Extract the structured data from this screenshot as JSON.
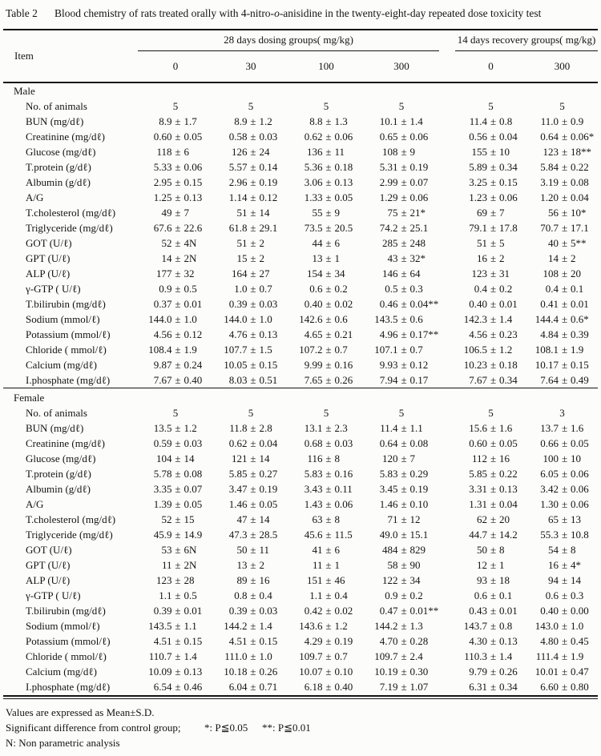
{
  "title": {
    "label": "Table 2",
    "text_before_italic": "Blood chemistry of rats treated orally with 4-nitro-",
    "italic": "o",
    "text_after_italic": "-anisidine in the twenty-eight-day repeated dose toxicity test"
  },
  "header": {
    "item_label": "Item",
    "groups": [
      {
        "label": "28 days dosing groups( mg/kg)",
        "doses": [
          "0",
          "30",
          "100",
          "300"
        ]
      },
      {
        "label": "14 days recovery groups( mg/kg)",
        "doses": [
          "0",
          "300"
        ]
      }
    ]
  },
  "sections": [
    {
      "label": "Male",
      "rows": [
        {
          "item": "No. of animals",
          "values": [
            "5",
            "5",
            "5",
            "5",
            "5",
            "5"
          ]
        },
        {
          "item": "BUN (mg/dℓ)",
          "values": [
            "8.9 ± 1.7",
            "8.9 ± 1.2",
            "8.8 ± 1.3",
            "10.1 ± 1.4",
            "11.4 ± 0.8",
            "11.0 ± 0.9"
          ]
        },
        {
          "item": "Creatinine (mg/dℓ)",
          "values": [
            "0.60 ± 0.05",
            "0.58 ± 0.03",
            "0.62 ± 0.06",
            "0.65 ± 0.06",
            "0.56 ± 0.04",
            "0.64 ± 0.06*"
          ]
        },
        {
          "item": "Glucose (mg/dℓ)",
          "values": [
            "118 ± 6",
            "126 ± 24",
            "136 ± 11",
            "108 ± 9",
            "155 ± 10",
            "123 ± 18**"
          ]
        },
        {
          "item": "T.protein (g/dℓ)",
          "values": [
            "5.33 ± 0.06",
            "5.57 ± 0.14",
            "5.36 ± 0.18",
            "5.31 ± 0.19",
            "5.89 ± 0.34",
            "5.84 ± 0.22"
          ]
        },
        {
          "item": "Albumin (g/dℓ)",
          "values": [
            "2.95 ± 0.15",
            "2.96 ± 0.19",
            "3.06 ± 0.13",
            "2.99 ± 0.07",
            "3.25 ± 0.15",
            "3.19 ± 0.08"
          ]
        },
        {
          "item": "A/G",
          "values": [
            "1.25 ± 0.13",
            "1.14 ± 0.12",
            "1.33 ± 0.05",
            "1.29 ± 0.06",
            "1.23 ± 0.06",
            "1.20 ± 0.04"
          ]
        },
        {
          "item": "T.cholesterol (mg/dℓ)",
          "values": [
            "49 ± 7",
            "51 ± 14",
            "55 ± 9",
            "75 ± 21*",
            "69 ± 7",
            "56 ± 10*"
          ]
        },
        {
          "item": "Triglyceride (mg/dℓ)",
          "values": [
            "67.6 ± 22.6",
            "61.8 ± 29.1",
            "73.5 ± 20.5",
            "74.2 ± 25.1",
            "79.1 ± 17.8",
            "70.7 ± 17.1"
          ]
        },
        {
          "item": "GOT (U/ℓ)",
          "values": [
            "52 ± 4N",
            "51 ± 2",
            "44 ± 6",
            "285 ± 248",
            "51 ± 5",
            "40 ± 5**"
          ]
        },
        {
          "item": "GPT (U/ℓ)",
          "values": [
            "14 ± 2N",
            "15 ± 2",
            "13 ± 1",
            "43 ± 32*",
            "16 ± 2",
            "14 ± 2"
          ]
        },
        {
          "item": "ALP (U/ℓ)",
          "values": [
            "177 ± 32",
            "164 ± 27",
            "154 ± 34",
            "146 ± 64",
            "123 ± 31",
            "108 ± 20"
          ]
        },
        {
          "item": "γ-GTP ( U/ℓ)",
          "values": [
            "0.9 ± 0.5",
            "1.0 ± 0.7",
            "0.6 ± 0.2",
            "0.5 ± 0.3",
            "0.4 ± 0.2",
            "0.4 ± 0.1"
          ]
        },
        {
          "item": "T.bilirubin (mg/dℓ)",
          "values": [
            "0.37 ± 0.01",
            "0.39 ± 0.03",
            "0.40 ± 0.02",
            "0.46 ± 0.04**",
            "0.40 ± 0.01",
            "0.41 ± 0.01"
          ]
        },
        {
          "item": "Sodium (mmol/ℓ)",
          "values": [
            "144.0 ± 1.0",
            "144.0 ± 1.0",
            "142.6 ± 0.6",
            "143.5 ± 0.6",
            "142.3 ± 1.4",
            "144.4 ± 0.6*"
          ]
        },
        {
          "item": "Potassium (mmol/ℓ)",
          "values": [
            "4.56 ± 0.12",
            "4.76 ± 0.13",
            "4.65 ± 0.21",
            "4.96 ± 0.17**",
            "4.56 ± 0.23",
            "4.84 ± 0.39"
          ]
        },
        {
          "item": "Chloride ( mmol/ℓ)",
          "values": [
            "108.4 ± 1.9",
            "107.7 ± 1.5",
            "107.2 ± 0.7",
            "107.1 ± 0.7",
            "106.5 ± 1.2",
            "108.1 ± 1.9"
          ]
        },
        {
          "item": "Calcium (mg/dℓ)",
          "values": [
            "9.87 ± 0.24",
            "10.05 ± 0.15",
            "9.99 ± 0.16",
            "9.93 ± 0.12",
            "10.23 ± 0.18",
            "10.17 ± 0.15"
          ]
        },
        {
          "item": "I.phosphate (mg/dℓ)",
          "values": [
            "7.67 ± 0.40",
            "8.03 ± 0.51",
            "7.65 ± 0.26",
            "7.94 ± 0.17",
            "7.67 ± 0.34",
            "7.64 ± 0.49"
          ]
        }
      ]
    },
    {
      "label": "Female",
      "rows": [
        {
          "item": "No. of animals",
          "values": [
            "5",
            "5",
            "5",
            "5",
            "5",
            "3"
          ]
        },
        {
          "item": "BUN (mg/dℓ)",
          "values": [
            "13.5 ± 1.2",
            "11.8 ± 2.8",
            "13.1 ± 2.3",
            "11.4 ± 1.1",
            "15.6 ± 1.6",
            "13.7 ± 1.6"
          ]
        },
        {
          "item": "Creatinine (mg/dℓ)",
          "values": [
            "0.59 ± 0.03",
            "0.62 ± 0.04",
            "0.68 ± 0.03",
            "0.64 ± 0.08",
            "0.60 ± 0.05",
            "0.66 ± 0.05"
          ]
        },
        {
          "item": "Glucose (mg/dℓ)",
          "values": [
            "104 ± 14",
            "121 ± 14",
            "116 ± 8",
            "120 ± 7",
            "112 ± 16",
            "100 ± 10"
          ]
        },
        {
          "item": "T.protein (g/dℓ)",
          "values": [
            "5.78 ± 0.08",
            "5.85 ± 0.27",
            "5.83 ± 0.16",
            "5.83 ± 0.29",
            "5.85 ± 0.22",
            "6.05 ± 0.06"
          ]
        },
        {
          "item": "Albumin (g/dℓ)",
          "values": [
            "3.35 ± 0.07",
            "3.47 ± 0.19",
            "3.43 ± 0.11",
            "3.45 ± 0.19",
            "3.31 ± 0.13",
            "3.42 ± 0.06"
          ]
        },
        {
          "item": "A/G",
          "values": [
            "1.39 ± 0.05",
            "1.46 ± 0.05",
            "1.43 ± 0.06",
            "1.46 ± 0.10",
            "1.31 ± 0.04",
            "1.30 ± 0.06"
          ]
        },
        {
          "item": "T.cholesterol (mg/dℓ)",
          "values": [
            "52 ± 15",
            "47 ± 14",
            "63 ± 8",
            "71 ± 12",
            "62 ± 20",
            "65 ± 13"
          ]
        },
        {
          "item": "Triglyceride (mg/dℓ)",
          "values": [
            "45.9 ± 14.9",
            "47.3 ± 28.5",
            "45.6 ± 11.5",
            "49.0 ± 15.1",
            "44.7 ± 14.2",
            "55.3 ± 10.8"
          ]
        },
        {
          "item": "GOT (U/ℓ)",
          "values": [
            "53 ± 6N",
            "50 ± 11",
            "41 ± 6",
            "484 ± 829",
            "50 ± 8",
            "54 ± 8"
          ]
        },
        {
          "item": "GPT (U/ℓ)",
          "values": [
            "11 ± 2N",
            "13 ± 2",
            "11 ± 1",
            "58 ± 90",
            "12 ± 1",
            "16 ± 4*"
          ]
        },
        {
          "item": "ALP (U/ℓ)",
          "values": [
            "123 ± 28",
            "89 ± 16",
            "151 ± 46",
            "122 ± 34",
            "93 ± 18",
            "94 ± 14"
          ]
        },
        {
          "item": "γ-GTP ( U/ℓ)",
          "values": [
            "1.1 ± 0.5",
            "0.8 ± 0.4",
            "1.1 ± 0.4",
            "0.9 ± 0.2",
            "0.6 ± 0.1",
            "0.6 ± 0.3"
          ]
        },
        {
          "item": "T.bilirubin (mg/dℓ)",
          "values": [
            "0.39 ± 0.01",
            "0.39 ± 0.03",
            "0.42 ± 0.02",
            "0.47 ± 0.01**",
            "0.43 ± 0.01",
            "0.40 ± 0.00"
          ]
        },
        {
          "item": "Sodium (mmol/ℓ)",
          "values": [
            "143.5 ± 1.1",
            "144.2 ± 1.4",
            "143.6 ± 1.2",
            "144.2 ± 1.3",
            "143.7 ± 0.8",
            "143.0 ± 1.0"
          ]
        },
        {
          "item": "Potassium (mmol/ℓ)",
          "values": [
            "4.51 ± 0.15",
            "4.51 ± 0.15",
            "4.29 ± 0.19",
            "4.70 ± 0.28",
            "4.30 ± 0.13",
            "4.80 ± 0.45"
          ]
        },
        {
          "item": "Chloride ( mmol/ℓ)",
          "values": [
            "110.7 ± 1.4",
            "111.0 ± 1.0",
            "109.7 ± 0.7",
            "109.7 ± 2.4",
            "110.3 ± 1.4",
            "111.4 ± 1.9"
          ]
        },
        {
          "item": "Calcium (mg/dℓ)",
          "values": [
            "10.09 ± 0.13",
            "10.18 ± 0.26",
            "10.07 ± 0.10",
            "10.19 ± 0.30",
            "9.79 ± 0.26",
            "10.01 ± 0.47"
          ]
        },
        {
          "item": "I.phosphate (mg/dℓ)",
          "values": [
            "6.54 ± 0.46",
            "6.04 ± 0.71",
            "6.18 ± 0.40",
            "7.19 ± 1.07",
            "6.31 ± 0.34",
            "6.60 ± 0.80"
          ]
        }
      ]
    }
  ],
  "footnotes": {
    "line1": "Values are expressed as Mean±S.D.",
    "line2_label": "Significant difference from control group;",
    "line2_sig1": "*: P≦0.05",
    "line2_sig2": "**: P≦0.01",
    "line3": "N: Non parametric analysis"
  }
}
